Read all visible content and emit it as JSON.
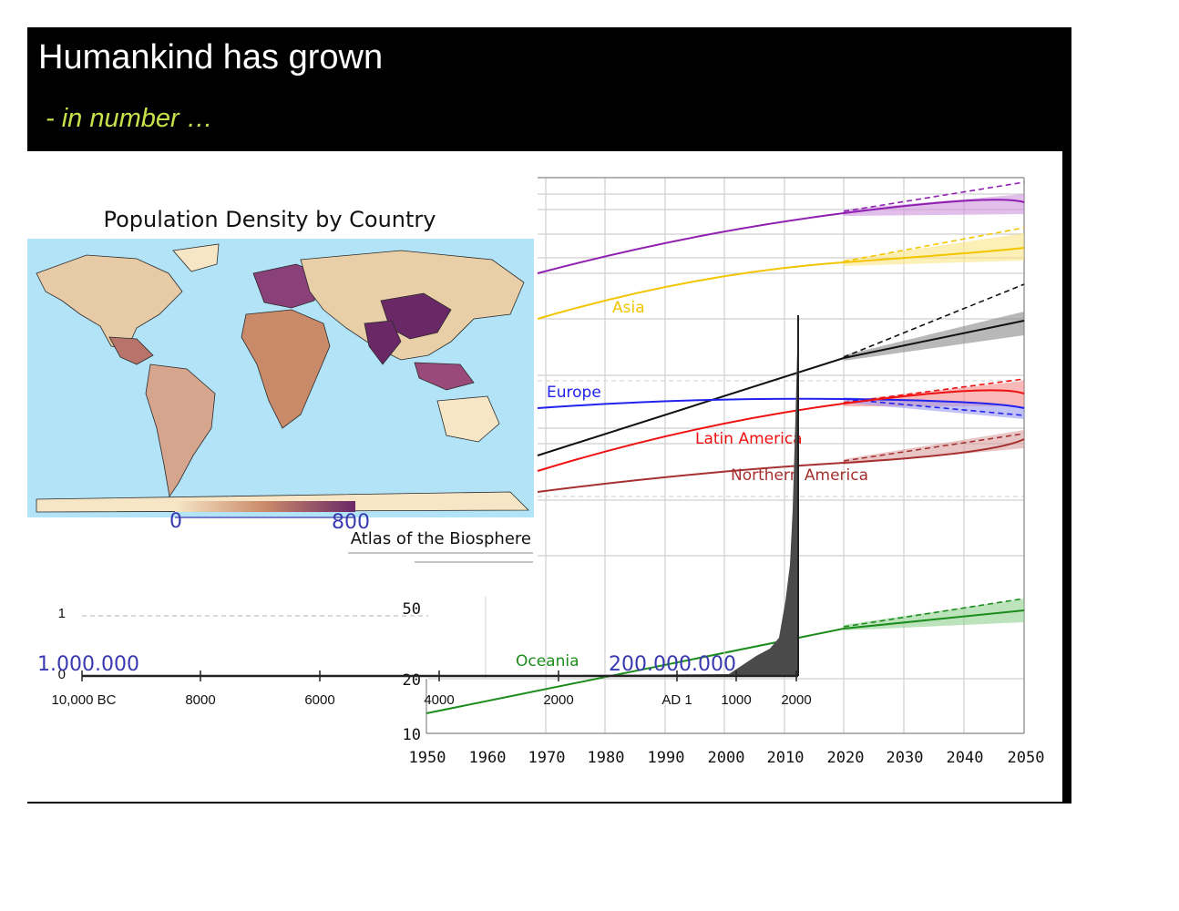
{
  "slide": {
    "title": "Humankind has grown",
    "subtitle": "- in number …"
  },
  "map": {
    "title": "Population Density by Country",
    "legend_min": "0",
    "legend_max": "800",
    "footer": "Atlas of the Biosphere",
    "colors": {
      "ocean": "#b3e3f7",
      "low": "#f6e6c6",
      "mid": "#c98a6a",
      "high": "#6b2866"
    }
  },
  "regional_chart": {
    "x_ticks": [
      "1950",
      "1960",
      "1970",
      "1980",
      "1990",
      "2000",
      "2010",
      "2020",
      "2030",
      "2040",
      "2050"
    ],
    "y_ticks": [
      "50",
      "20",
      "10"
    ],
    "series_labels": {
      "asia": "Asia",
      "europe": "Europe",
      "latin_america": "Latin America",
      "northern_america": "Northern America",
      "oceania": "Oceania"
    },
    "colors": {
      "world": "#8e1fb0",
      "asia": "#f2c500",
      "africa": "#111111",
      "europe": "#2222ee",
      "latin_america": "#ee1111",
      "northern_america": "#a63030",
      "oceania": "#1c8c1c"
    }
  },
  "history_chart": {
    "y_ticks": [
      "1",
      "0"
    ],
    "x_ticks": [
      "10,000 BC",
      "8000",
      "6000",
      "4000",
      "2000",
      "AD 1",
      "1000",
      "2000"
    ],
    "annotations": {
      "left_value": "1.000.000",
      "mid_value": "200.000.000"
    },
    "colors": {
      "fill": "#4a4a4a",
      "annotation": "#3a3ab0"
    }
  }
}
